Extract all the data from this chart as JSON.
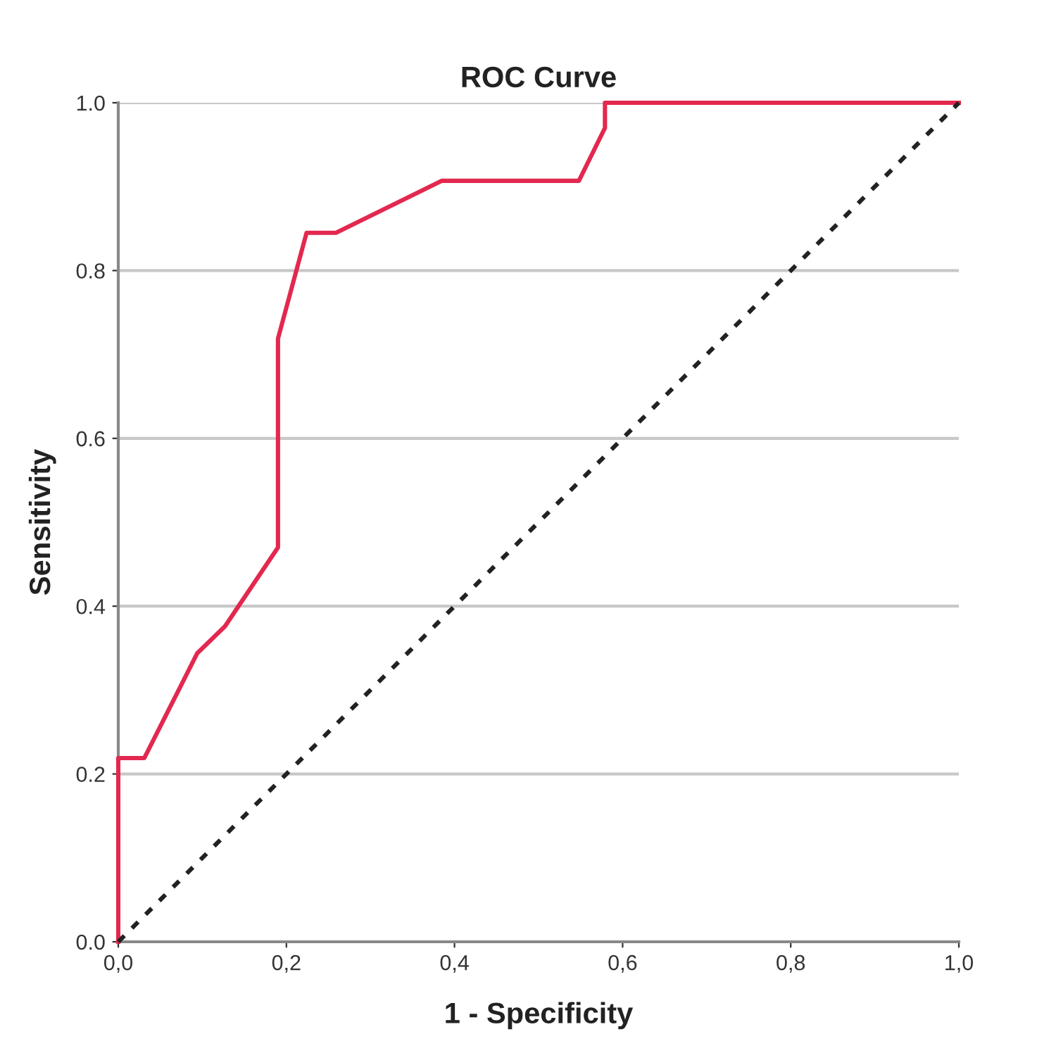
{
  "chart_data": {
    "type": "line",
    "title": "ROC Curve",
    "xlabel": "1 - Specificity",
    "ylabel": "Sensitivity",
    "series": [
      {
        "color": "#e3284f",
        "line_style": "solid",
        "x": [
          0,
          0,
          0.031,
          0.094,
          0.127,
          0.19,
          0.19,
          0.224,
          0.259,
          0.385,
          0.548,
          0.579,
          0.579,
          1.0
        ],
        "values": [
          0,
          0.219,
          0.219,
          0.344,
          0.376,
          0.47,
          0.719,
          0.845,
          0.845,
          0.907,
          0.907,
          0.97,
          1.0,
          1.0
        ]
      },
      {
        "color": "#222222",
        "line_style": "dashed",
        "x": [
          0,
          1
        ],
        "values": [
          0,
          1
        ]
      }
    ],
    "xlim": [
      0,
      1
    ],
    "ylim": [
      0,
      1
    ],
    "xticks": [
      {
        "value": 0,
        "label": "0,0"
      },
      {
        "value": 0.2,
        "label": "0,2"
      },
      {
        "value": 0.4,
        "label": "0,4"
      },
      {
        "value": 0.6,
        "label": "0,6"
      },
      {
        "value": 0.8,
        "label": "0,8"
      },
      {
        "value": 1.0,
        "label": "1,0"
      }
    ],
    "yticks": [
      {
        "value": 0,
        "label": "0.0"
      },
      {
        "value": 0.2,
        "label": "0.2"
      },
      {
        "value": 0.4,
        "label": "0.4"
      },
      {
        "value": 0.6,
        "label": "0.6"
      },
      {
        "value": 0.8,
        "label": "0.8"
      },
      {
        "value": 1.0,
        "label": "1.0"
      }
    ],
    "grid": "y",
    "marker": "none"
  }
}
